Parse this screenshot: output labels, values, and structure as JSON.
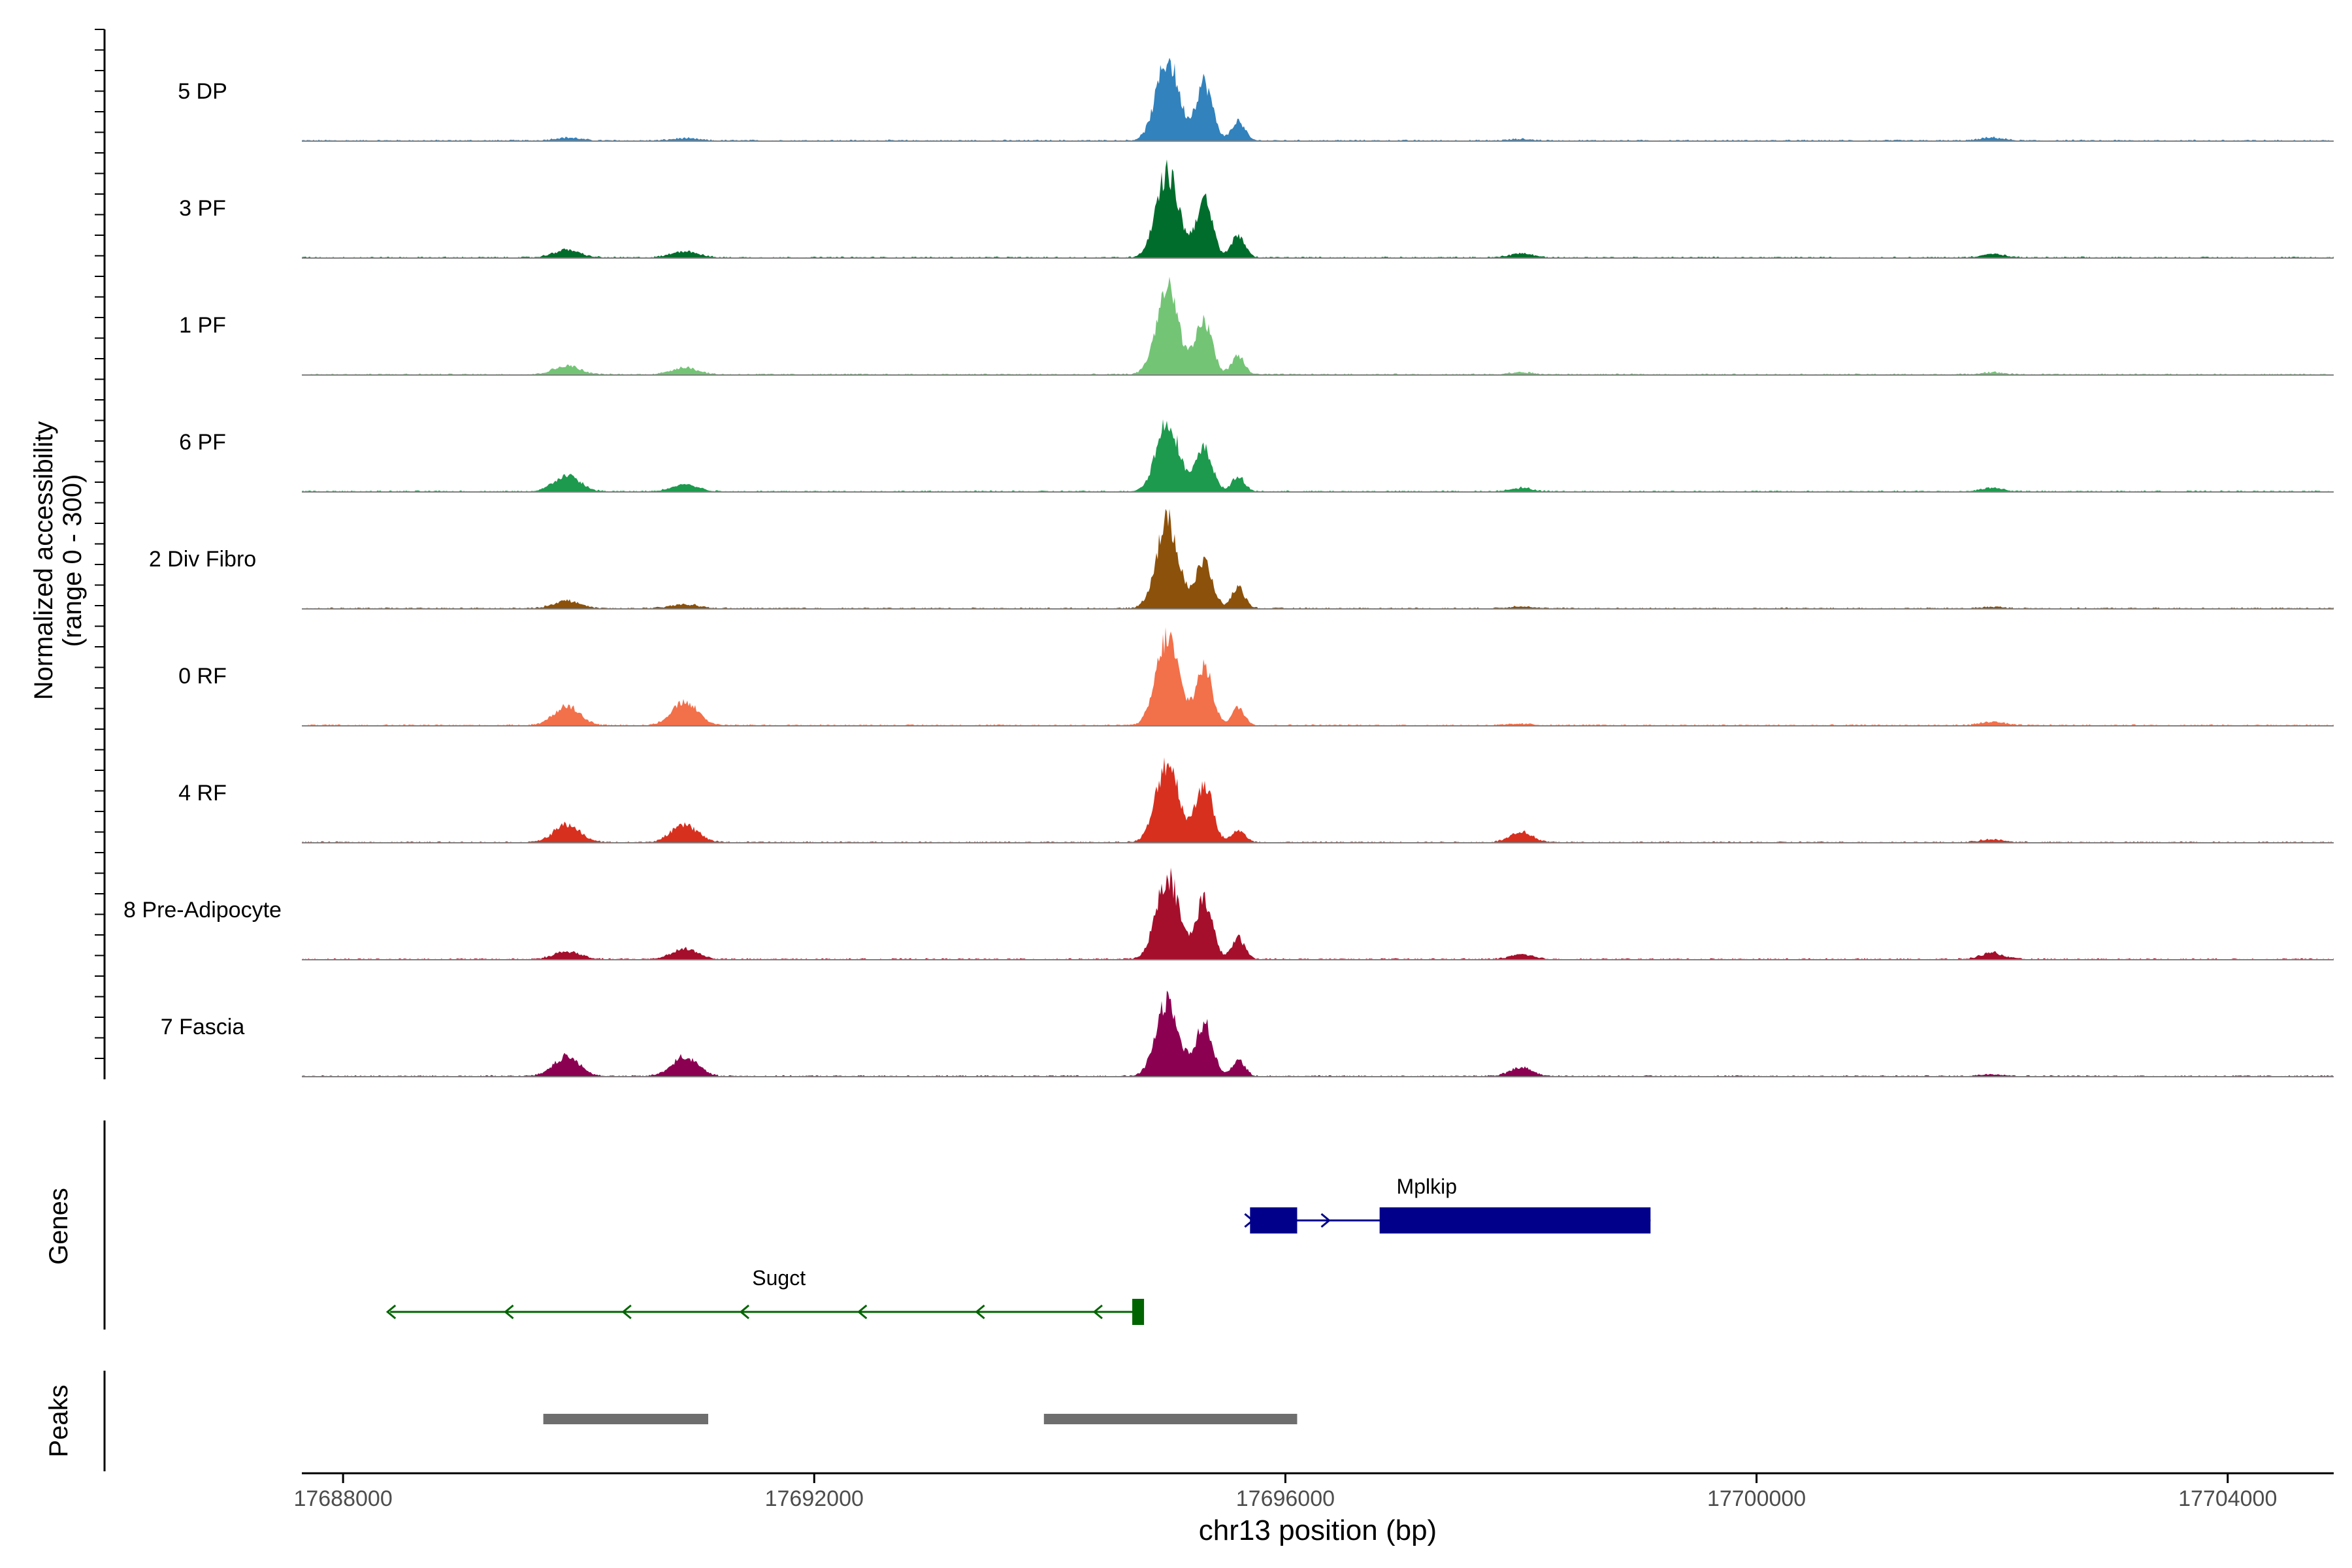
{
  "chart_data": {
    "type": "area",
    "title": "",
    "ylabel_line1": "Normalized accessibility",
    "ylabel_line2": "(range 0 - 300)",
    "xlabel": "chr13 position (bp)",
    "chromosome": "chr13",
    "x_range": [
      17687650,
      17704900
    ],
    "y_range": [
      0,
      300
    ],
    "x_ticks": [
      17688000,
      17692000,
      17696000,
      17700000,
      17704000
    ],
    "x_tick_labels": [
      "17688000",
      "17692000",
      "17696000",
      "17700000",
      "17704000"
    ],
    "peak_centers": [
      17689900,
      17690900,
      17695000,
      17695310,
      17695600,
      17698000,
      17702000
    ],
    "tracks": [
      {
        "name": "5 DP",
        "color": "#3182bd",
        "heights": [
          8,
          6,
          230,
          165,
          55,
          4,
          8
        ]
      },
      {
        "name": "3 PF",
        "color": "#006d2c",
        "heights": [
          22,
          18,
          240,
          160,
          65,
          12,
          10
        ]
      },
      {
        "name": "1 PF",
        "color": "#74c476",
        "heights": [
          25,
          20,
          240,
          150,
          50,
          6,
          6
        ]
      },
      {
        "name": "6 PF",
        "color": "#1d9a4e",
        "heights": [
          45,
          20,
          200,
          120,
          40,
          10,
          10
        ]
      },
      {
        "name": "2 Div Fibro",
        "color": "#8c510a",
        "heights": [
          22,
          12,
          245,
          130,
          60,
          6,
          4
        ]
      },
      {
        "name": "0 RF",
        "color": "#f2704a",
        "heights": [
          55,
          65,
          250,
          165,
          50,
          4,
          10
        ]
      },
      {
        "name": "4 RF",
        "color": "#d7301f",
        "heights": [
          50,
          50,
          230,
          170,
          35,
          30,
          8
        ]
      },
      {
        "name": "8 Pre-Adipocyte",
        "color": "#a50f2b",
        "heights": [
          22,
          30,
          240,
          170,
          60,
          14,
          18
        ]
      },
      {
        "name": "7 Fascia",
        "color": "#8c0052",
        "heights": [
          55,
          55,
          220,
          150,
          45,
          25,
          6
        ]
      }
    ],
    "genes": [
      {
        "name": "Mplkip",
        "strand": "+",
        "color": "#00008b",
        "start": 17695700,
        "end": 17699100,
        "exons": [
          [
            17695700,
            17696100
          ],
          [
            17696800,
            17699100
          ]
        ],
        "arrow_positions": [
          17695700,
          17696350
        ]
      },
      {
        "name": "Sugct",
        "strand": "-",
        "color": "#006400",
        "start": 17688400,
        "end": 17694750,
        "exons": [
          [
            17694700,
            17694800
          ]
        ],
        "arrow_positions": [
          17688400,
          17689400,
          17690400,
          17691400,
          17692400,
          17693400,
          17694400
        ]
      }
    ],
    "peaks": [
      {
        "start": 17689700,
        "end": 17691100
      },
      {
        "start": 17693950,
        "end": 17696100
      }
    ],
    "panel_labels": {
      "genes": "Genes",
      "peaks": "Peaks"
    }
  }
}
